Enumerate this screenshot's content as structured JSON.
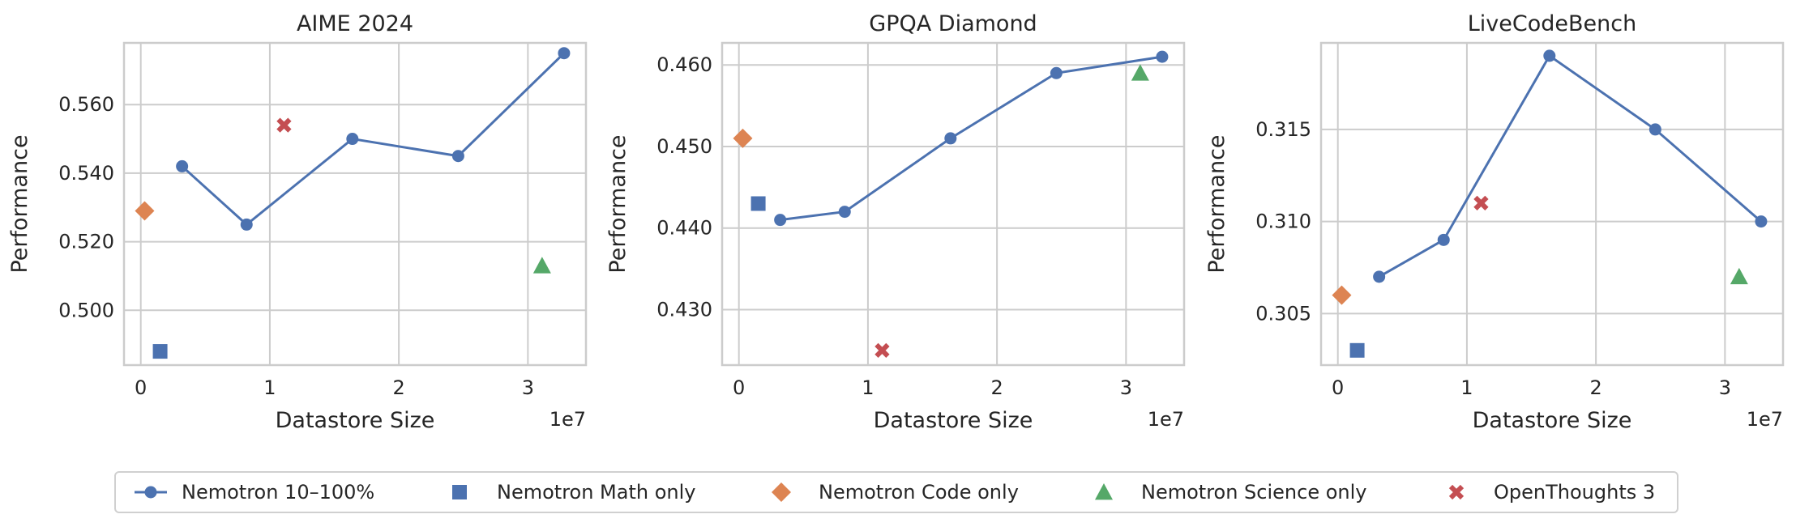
{
  "colors": {
    "nemotron": "#4c72b0",
    "math": "#4c72b0",
    "code": "#dd8452",
    "science": "#55a868",
    "openthoughts": "#c44e52"
  },
  "legend": [
    {
      "key": "nemotron",
      "label": "Nemotron 10–100%",
      "marker": "line-circle"
    },
    {
      "key": "math",
      "label": "Nemotron Math only",
      "marker": "square"
    },
    {
      "key": "code",
      "label": "Nemotron Code only",
      "marker": "diamond"
    },
    {
      "key": "science",
      "label": "Nemotron Science only",
      "marker": "triangle"
    },
    {
      "key": "openthoughts",
      "label": "OpenThoughts 3",
      "marker": "x"
    }
  ],
  "chart_data": [
    {
      "type": "line",
      "title": "AIME 2024",
      "xlabel": "Datastore Size",
      "ylabel": "Performance",
      "x_offset_label": "1e7",
      "xlim": [
        -0.13,
        3.45
      ],
      "ylim": [
        0.484,
        0.578
      ],
      "xticks": [
        0,
        1,
        2,
        3
      ],
      "xtick_labels": [
        "0",
        "1",
        "2",
        "3"
      ],
      "yticks": [
        0.5,
        0.52,
        0.54,
        0.56
      ],
      "ytick_labels": [
        "0.500",
        "0.520",
        "0.540",
        "0.560"
      ],
      "series": [
        {
          "key": "nemotron",
          "name": "Nemotron 10–100%",
          "x": [
            0.32,
            0.82,
            1.64,
            2.46,
            3.28
          ],
          "y": [
            0.542,
            0.525,
            0.55,
            0.545,
            0.575
          ]
        },
        {
          "key": "math",
          "name": "Nemotron Math only",
          "x": [
            0.15
          ],
          "y": [
            0.488
          ]
        },
        {
          "key": "code",
          "name": "Nemotron Code only",
          "x": [
            0.03
          ],
          "y": [
            0.529
          ]
        },
        {
          "key": "science",
          "name": "Nemotron Science only",
          "x": [
            3.11
          ],
          "y": [
            0.513
          ]
        },
        {
          "key": "openthoughts",
          "name": "OpenThoughts 3",
          "x": [
            1.11
          ],
          "y": [
            0.554
          ]
        }
      ]
    },
    {
      "type": "line",
      "title": "GPQA Diamond",
      "xlabel": "Datastore Size",
      "ylabel": "Performance",
      "x_offset_label": "1e7",
      "xlim": [
        -0.13,
        3.45
      ],
      "ylim": [
        0.4232,
        0.4627
      ],
      "xticks": [
        0,
        1,
        2,
        3
      ],
      "xtick_labels": [
        "0",
        "1",
        "2",
        "3"
      ],
      "yticks": [
        0.43,
        0.44,
        0.45,
        0.46
      ],
      "ytick_labels": [
        "0.430",
        "0.440",
        "0.450",
        "0.460"
      ],
      "series": [
        {
          "key": "nemotron",
          "name": "Nemotron 10–100%",
          "x": [
            0.32,
            0.82,
            1.64,
            2.46,
            3.28
          ],
          "y": [
            0.441,
            0.442,
            0.451,
            0.459,
            0.461
          ]
        },
        {
          "key": "math",
          "name": "Nemotron Math only",
          "x": [
            0.15
          ],
          "y": [
            0.443
          ]
        },
        {
          "key": "code",
          "name": "Nemotron Code only",
          "x": [
            0.03
          ],
          "y": [
            0.451
          ]
        },
        {
          "key": "science",
          "name": "Nemotron Science only",
          "x": [
            3.11
          ],
          "y": [
            0.459
          ]
        },
        {
          "key": "openthoughts",
          "name": "OpenThoughts 3",
          "x": [
            1.11
          ],
          "y": [
            0.425
          ]
        }
      ]
    },
    {
      "type": "line",
      "title": "LiveCodeBench",
      "xlabel": "Datastore Size",
      "ylabel": "Performance",
      "x_offset_label": "1e7",
      "xlim": [
        -0.13,
        3.45
      ],
      "ylim": [
        0.3022,
        0.3197
      ],
      "xticks": [
        0,
        1,
        2,
        3
      ],
      "xtick_labels": [
        "0",
        "1",
        "2",
        "3"
      ],
      "yticks": [
        0.305,
        0.31,
        0.315
      ],
      "ytick_labels": [
        "0.305",
        "0.310",
        "0.315"
      ],
      "series": [
        {
          "key": "nemotron",
          "name": "Nemotron 10–100%",
          "x": [
            0.32,
            0.82,
            1.64,
            2.46,
            3.28
          ],
          "y": [
            0.307,
            0.309,
            0.319,
            0.315,
            0.31
          ]
        },
        {
          "key": "math",
          "name": "Nemotron Math only",
          "x": [
            0.15
          ],
          "y": [
            0.303
          ]
        },
        {
          "key": "code",
          "name": "Nemotron Code only",
          "x": [
            0.03
          ],
          "y": [
            0.306
          ]
        },
        {
          "key": "science",
          "name": "Nemotron Science only",
          "x": [
            3.11
          ],
          "y": [
            0.307
          ]
        },
        {
          "key": "openthoughts",
          "name": "OpenThoughts 3",
          "x": [
            1.11
          ],
          "y": [
            0.311
          ]
        }
      ]
    }
  ]
}
